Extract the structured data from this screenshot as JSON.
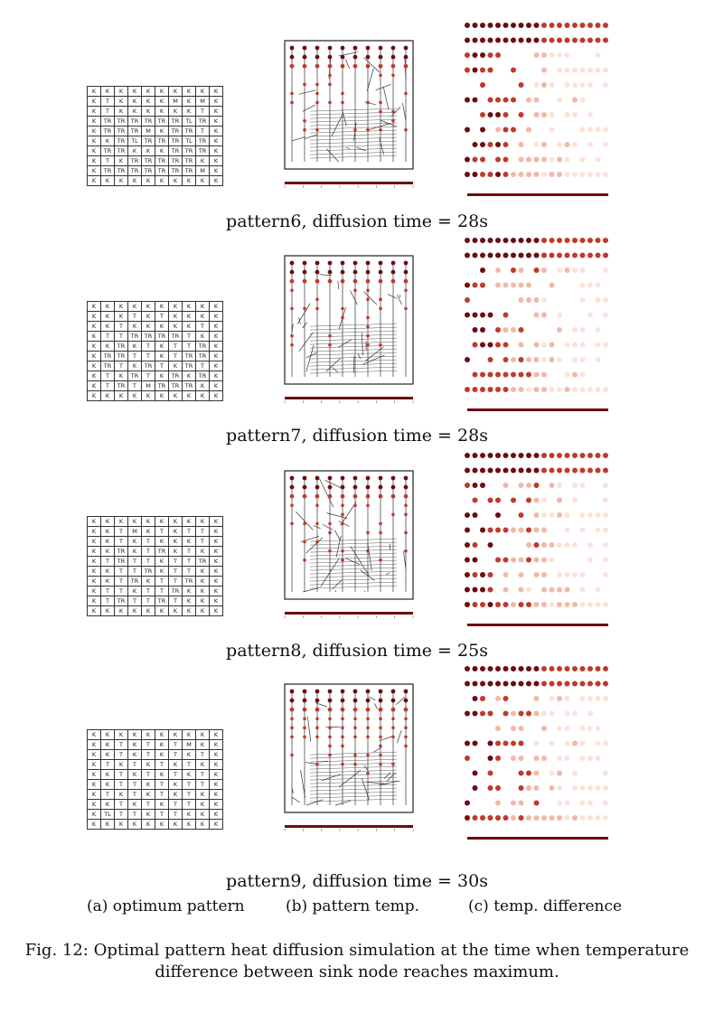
{
  "patterns": [
    {
      "caption": "pattern6, diffusion time = 28s",
      "grid": [
        [
          "K",
          "K",
          "K",
          "K",
          "K",
          "K",
          "K",
          "K",
          "K",
          "K"
        ],
        [
          "K",
          "T",
          "K",
          "K",
          "K",
          "K",
          "M",
          "K",
          "M",
          "K"
        ],
        [
          "K",
          "T",
          "K",
          "K",
          "K",
          "K",
          "K",
          "K",
          "T",
          "K"
        ],
        [
          "K",
          "TR",
          "TR",
          "TR",
          "TR",
          "TR",
          "TR",
          "TL",
          "TR",
          "K"
        ],
        [
          "K",
          "TR",
          "TR",
          "TR",
          "M",
          "K",
          "TR",
          "TR",
          "T",
          "K"
        ],
        [
          "K",
          "K",
          "TR",
          "TL",
          "TR",
          "TR",
          "TR",
          "TL",
          "TR",
          "K"
        ],
        [
          "K",
          "TR",
          "TR",
          "K",
          "K",
          "K",
          "TR",
          "TR",
          "TR",
          "K"
        ],
        [
          "K",
          "T",
          "K",
          "TR",
          "TR",
          "TR",
          "TR",
          "TR",
          "K",
          "K"
        ],
        [
          "K",
          "TR",
          "TR",
          "TR",
          "TR",
          "TR",
          "TR",
          "TR",
          "M",
          "K"
        ],
        [
          "K",
          "K",
          "K",
          "K",
          "K",
          "K",
          "K",
          "K",
          "K",
          "K"
        ]
      ]
    },
    {
      "caption": "pattern7, diffusion time = 28s",
      "grid": [
        [
          "K",
          "K",
          "K",
          "K",
          "K",
          "K",
          "K",
          "K",
          "K",
          "K"
        ],
        [
          "K",
          "K",
          "K",
          "T",
          "K",
          "T",
          "K",
          "K",
          "K",
          "K"
        ],
        [
          "K",
          "K",
          "T",
          "K",
          "K",
          "K",
          "K",
          "K",
          "T",
          "K"
        ],
        [
          "K",
          "T",
          "T",
          "TR",
          "TR",
          "TR",
          "TR",
          "T",
          "K",
          "K"
        ],
        [
          "K",
          "K",
          "TR",
          "K",
          "T",
          "K",
          "T",
          "T",
          "TR",
          "K"
        ],
        [
          "K",
          "TR",
          "TR",
          "T",
          "T",
          "K",
          "T",
          "TR",
          "TR",
          "K"
        ],
        [
          "K",
          "TR",
          "T",
          "K",
          "TR",
          "T",
          "K",
          "TR",
          "T",
          "K"
        ],
        [
          "K",
          "T",
          "K",
          "TR",
          "T",
          "K",
          "TR",
          "K",
          "TR",
          "K"
        ],
        [
          "K",
          "T",
          "TR",
          "T",
          "M",
          "TR",
          "TR",
          "TR",
          "K",
          "K"
        ],
        [
          "K",
          "K",
          "K",
          "K",
          "K",
          "K",
          "K",
          "K",
          "K",
          "K"
        ]
      ]
    },
    {
      "caption": "pattern8, diffusion time = 25s",
      "grid": [
        [
          "K",
          "K",
          "K",
          "K",
          "K",
          "K",
          "K",
          "K",
          "K",
          "K"
        ],
        [
          "K",
          "K",
          "T",
          "M",
          "K",
          "T",
          "K",
          "T",
          "T",
          "K"
        ],
        [
          "K",
          "K",
          "T",
          "K",
          "T",
          "K",
          "K",
          "K",
          "T",
          "K"
        ],
        [
          "K",
          "K",
          "TR",
          "K",
          "T",
          "TR",
          "K",
          "T",
          "K",
          "K"
        ],
        [
          "K",
          "T",
          "TR",
          "T",
          "T",
          "K",
          "T",
          "T",
          "TR",
          "K"
        ],
        [
          "K",
          "K",
          "T",
          "T",
          "TR",
          "K",
          "T",
          "T",
          "K",
          "K"
        ],
        [
          "K",
          "K",
          "T",
          "TR",
          "K",
          "T",
          "T",
          "TR",
          "K",
          "K"
        ],
        [
          "K",
          "T",
          "T",
          "K",
          "T",
          "T",
          "TR",
          "K",
          "K",
          "K"
        ],
        [
          "K",
          "T",
          "TR",
          "T",
          "T",
          "TR",
          "T",
          "K",
          "K",
          "K"
        ],
        [
          "K",
          "K",
          "K",
          "K",
          "K",
          "K",
          "K",
          "K",
          "K",
          "K"
        ]
      ]
    },
    {
      "caption": "pattern9, diffusion time = 30s",
      "grid": [
        [
          "K",
          "K",
          "K",
          "K",
          "K",
          "K",
          "K",
          "K",
          "K",
          "K"
        ],
        [
          "K",
          "K",
          "T",
          "K",
          "T",
          "K",
          "T",
          "M",
          "K",
          "K"
        ],
        [
          "K",
          "K",
          "T",
          "K",
          "T",
          "K",
          "T",
          "K",
          "T",
          "K"
        ],
        [
          "K",
          "T",
          "K",
          "T",
          "K",
          "T",
          "K",
          "T",
          "K",
          "K"
        ],
        [
          "K",
          "K",
          "T",
          "K",
          "T",
          "K",
          "T",
          "K",
          "T",
          "K"
        ],
        [
          "K",
          "K",
          "T",
          "T",
          "K",
          "T",
          "K",
          "T",
          "T",
          "K"
        ],
        [
          "K",
          "T",
          "K",
          "T",
          "K",
          "T",
          "K",
          "T",
          "K",
          "K"
        ],
        [
          "K",
          "K",
          "T",
          "K",
          "T",
          "K",
          "T",
          "T",
          "K",
          "K"
        ],
        [
          "K",
          "TL",
          "T",
          "T",
          "K",
          "T",
          "T",
          "K",
          "K",
          "K"
        ],
        [
          "K",
          "K",
          "K",
          "K",
          "K",
          "K",
          "K",
          "K",
          "K",
          "K"
        ]
      ]
    }
  ],
  "subcaptions": {
    "a": "(a) optimum pattern",
    "b": "(b) pattern temp.",
    "c": "(c) temp. difference"
  },
  "figure_caption_line1": "Fig. 12: Optimal pattern heat diffusion simulation at the time when temperature",
  "figure_caption_line2": "difference between sink node reaches maximum.",
  "colors": {
    "dark": "#6b0d12",
    "mid": "#c0392b",
    "light": "#f2b8a6",
    "pale": "#fbe3da"
  }
}
